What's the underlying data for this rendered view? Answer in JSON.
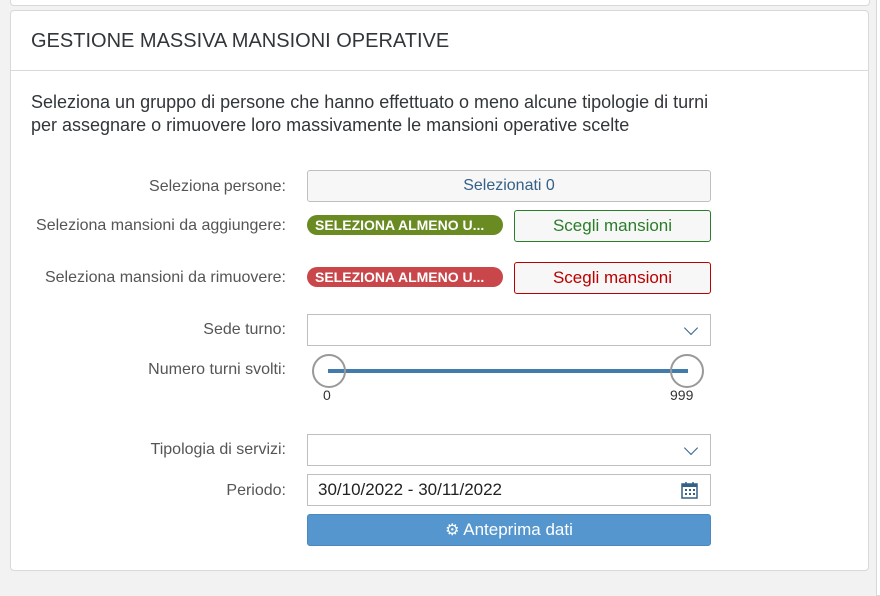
{
  "title": "GESTIONE MASSIVA MANSIONI OPERATIVE",
  "description": "Seleziona un gruppo di persone che hanno effettuato o meno alcune tipologie di turni per assegnare o rimuovere loro massivamente le mansioni operative scelte",
  "persone": {
    "label": "Seleziona persone:",
    "button": "Selezionati 0"
  },
  "aggiungere": {
    "label": "Seleziona mansioni da aggiungere:",
    "badge": "SELEZIONA ALMENO U...",
    "button": "Scegli mansioni",
    "color": "#6a8a22"
  },
  "rimuovere": {
    "label": "Seleziona mansioni da rimuovere:",
    "badge": "SELEZIONA ALMENO U...",
    "button": "Scegli mansioni",
    "color": "#c9474b"
  },
  "sede": {
    "label": "Sede turno:",
    "value": ""
  },
  "turni": {
    "label": "Numero turni svolti:",
    "min": "0",
    "max": "999",
    "low": 0,
    "high": 999
  },
  "servizi": {
    "label": "Tipologia di servizi:",
    "value": ""
  },
  "periodo": {
    "label": "Periodo:",
    "value": "30/10/2022 - 30/11/2022"
  },
  "preview": {
    "label": "Anteprima dati",
    "color": "#5496cd"
  }
}
